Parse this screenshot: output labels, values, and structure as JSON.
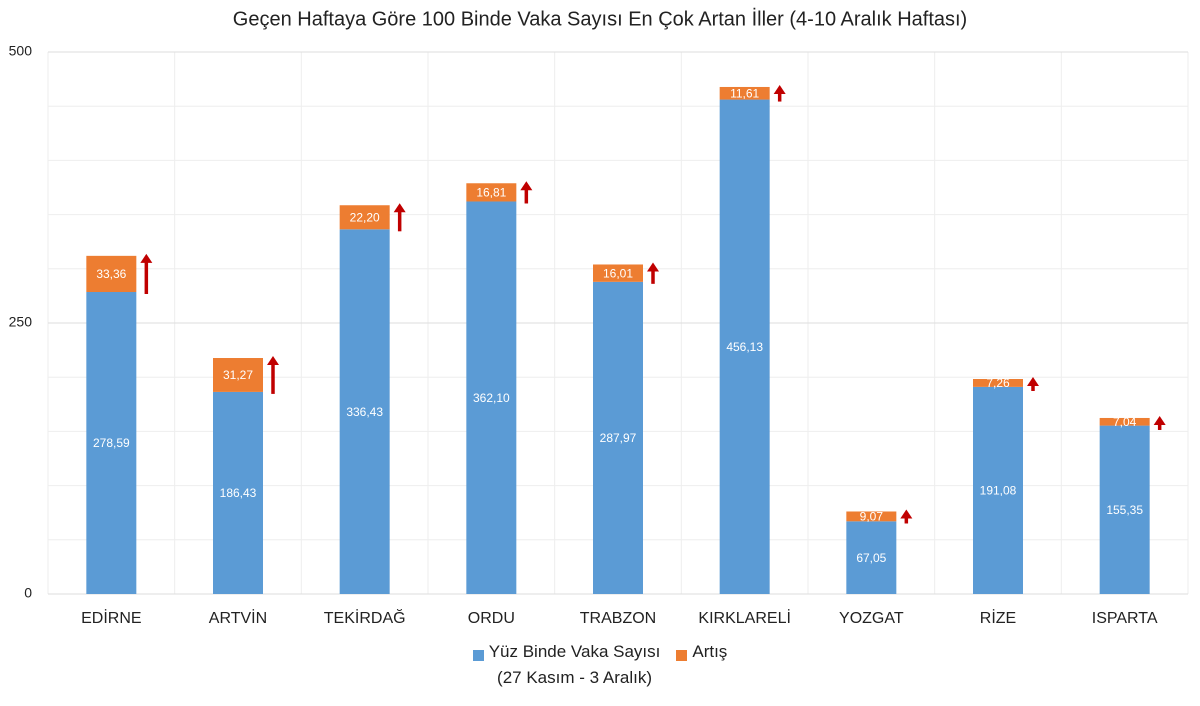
{
  "chart_data": {
    "type": "stacked-bar",
    "title": "Geçen Haftaya Göre 100 Binde Vaka Sayısı En Çok Artan İller (4-10 Aralık Haftası)",
    "categories": [
      "EDİRNE",
      "ARTVİN",
      "TEKİRDAĞ",
      "ORDU",
      "TRABZON",
      "KIRKLARELİ",
      "YOZGAT",
      "RİZE",
      "ISPARTA"
    ],
    "series": [
      {
        "name": "Yüz Binde Vaka Sayısı\n(27 Kasım - 3 Aralık)",
        "color": "#5b9bd5",
        "values": [
          278.59,
          186.43,
          336.43,
          362.1,
          287.97,
          456.13,
          67.05,
          191.08,
          155.35
        ],
        "value_labels": [
          "278,59",
          "186,43",
          "336,43",
          "362,10",
          "287,97",
          "456,13",
          "67,05",
          "191,08",
          "155,35"
        ]
      },
      {
        "name": "Artış",
        "color": "#ed7d31",
        "values": [
          33.36,
          31.27,
          22.2,
          16.81,
          16.01,
          11.61,
          9.07,
          7.26,
          7.04
        ],
        "value_labels": [
          "33,36",
          "31,27",
          "22,20",
          "16,81",
          "16,01",
          "11,61",
          "9,07",
          "7,26",
          "7,04"
        ]
      }
    ],
    "ylim": [
      0,
      500
    ],
    "yticks": [
      0,
      250,
      500
    ],
    "grid": true,
    "arrow_color": "#c00000"
  }
}
